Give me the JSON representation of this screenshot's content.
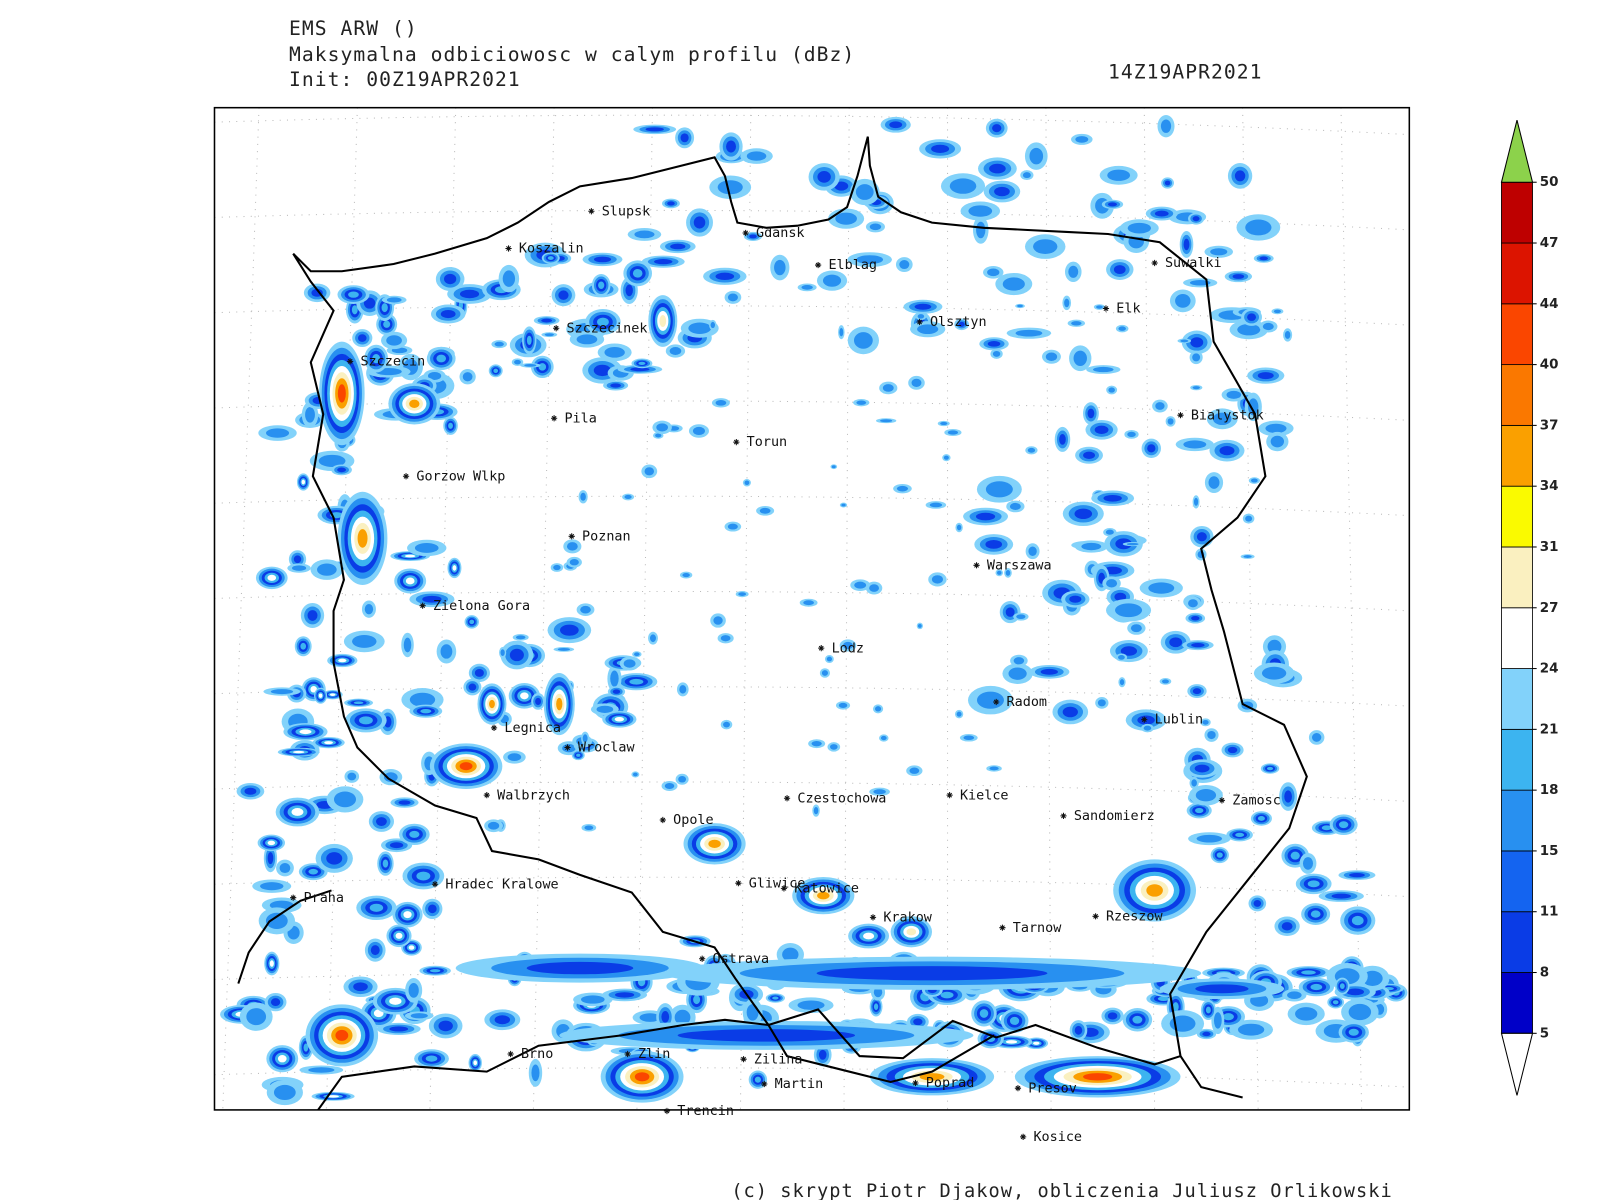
{
  "header": {
    "model": "EMS ARW ()",
    "variable": "Maksymalna odbiciowosc w calym profilu (dBz)",
    "init": "Init: 00Z19APR2021",
    "valid": "14Z19APR2021"
  },
  "map": {
    "cities": [
      "Slupsk",
      "Koszalin",
      "Gdansk",
      "Elblag",
      "Suwalki",
      "Szczecinek",
      "Olsztyn",
      "Elk",
      "Szczecin",
      "Pila",
      "Torun",
      "Bialystok",
      "Gorzow Wlkp",
      "Poznan",
      "Warszawa",
      "Zielona Gora",
      "Lodz",
      "Radom",
      "Lublin",
      "Legnica",
      "Wroclaw",
      "Walbrzych",
      "Czestochowa",
      "Kielce",
      "Sandomierz",
      "Zamosc",
      "Opole",
      "Hradec Kralowe",
      "Gliwice",
      "Katowice",
      "Praha",
      "Krakow",
      "Tarnow",
      "Rzeszow",
      "Ostrava",
      "Brno",
      "Zlin",
      "Zilina",
      "Martin",
      "Poprad",
      "Presov",
      "Trencin",
      "Kosice"
    ]
  },
  "colorbar": {
    "ticks": [
      5,
      8,
      11,
      15,
      18,
      21,
      24,
      27,
      31,
      34,
      37,
      40,
      44,
      47,
      50
    ],
    "colors": [
      "#0000c8",
      "#0a3ce6",
      "#1464f0",
      "#2890f0",
      "#3cb4f0",
      "#82d2fa",
      "#ffffff",
      "#faf0c0",
      "#fafa00",
      "#faa000",
      "#fa7800",
      "#fa4600",
      "#dc1400",
      "#be0000"
    ],
    "under_color": "#ffffff",
    "over_color": "#8cd24b"
  },
  "footer": "(c) skrypt Piotr Djakow, obliczenia Juliusz Orlikowski"
}
